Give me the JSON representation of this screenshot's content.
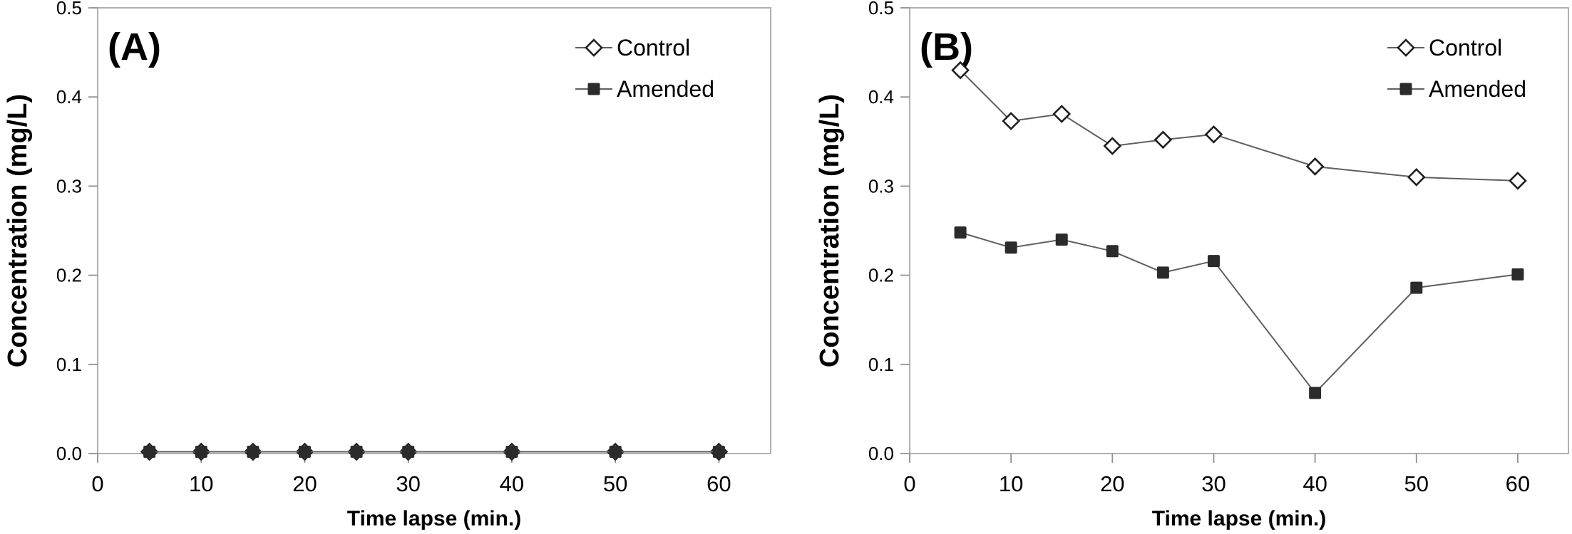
{
  "figure": {
    "description": "Two-panel line chart figure comparing Control and Amended concentration over time",
    "background": "#ffffff"
  },
  "colors": {
    "axis": "#a8a8a8",
    "tick": "#8f8f8f",
    "series_line": "#5f5f5f",
    "marker_dark": "#2b2b2b",
    "marker_stroke": "#1f1f1f",
    "text": "#000000",
    "background": "#ffffff"
  },
  "legend": {
    "items": [
      {
        "label": "Control",
        "marker": "open-diamond"
      },
      {
        "label": "Amended",
        "marker": "filled-square"
      }
    ],
    "position": "top-right"
  },
  "chart_data": [
    {
      "type": "line",
      "panel_label": "(A)",
      "title": "",
      "xlabel": "Time lapse (min.)",
      "ylabel": "Concentration (mg/L)",
      "x": [
        5,
        10,
        15,
        20,
        25,
        30,
        40,
        50,
        60
      ],
      "series": [
        {
          "name": "Control",
          "marker": "open-diamond",
          "values": [
            0.002,
            0.002,
            0.002,
            0.002,
            0.002,
            0.002,
            0.002,
            0.002,
            0.002
          ]
        },
        {
          "name": "Amended",
          "marker": "filled-square",
          "values": [
            0.002,
            0.002,
            0.002,
            0.002,
            0.002,
            0.002,
            0.002,
            0.002,
            0.002
          ]
        }
      ],
      "xlim": [
        0,
        65
      ],
      "ylim": [
        0,
        0.5
      ],
      "xticks": [
        0,
        10,
        20,
        30,
        40,
        50,
        60
      ],
      "yticks": [
        0,
        0.1,
        0.2,
        0.3,
        0.4,
        0.5
      ],
      "ytick_format": "one-decimal",
      "grid": false,
      "legend_position": "top-right"
    },
    {
      "type": "line",
      "panel_label": "(B)",
      "title": "",
      "xlabel": "Time lapse (min.)",
      "ylabel": "Concentration (mg/L)",
      "x": [
        5,
        10,
        15,
        20,
        25,
        30,
        40,
        50,
        60
      ],
      "series": [
        {
          "name": "Control",
          "marker": "open-diamond",
          "values": [
            0.43,
            0.373,
            0.381,
            0.345,
            0.352,
            0.358,
            0.322,
            0.31,
            0.306
          ]
        },
        {
          "name": "Amended",
          "marker": "filled-square",
          "values": [
            0.248,
            0.231,
            0.24,
            0.227,
            0.203,
            0.216,
            0.068,
            0.186,
            0.201
          ]
        }
      ],
      "xlim": [
        0,
        65
      ],
      "ylim": [
        0,
        0.5
      ],
      "xticks": [
        0,
        10,
        20,
        30,
        40,
        50,
        60
      ],
      "yticks": [
        0,
        0.1,
        0.2,
        0.3,
        0.4,
        0.5
      ],
      "ytick_format": "one-decimal",
      "grid": false,
      "legend_position": "top-right"
    }
  ]
}
